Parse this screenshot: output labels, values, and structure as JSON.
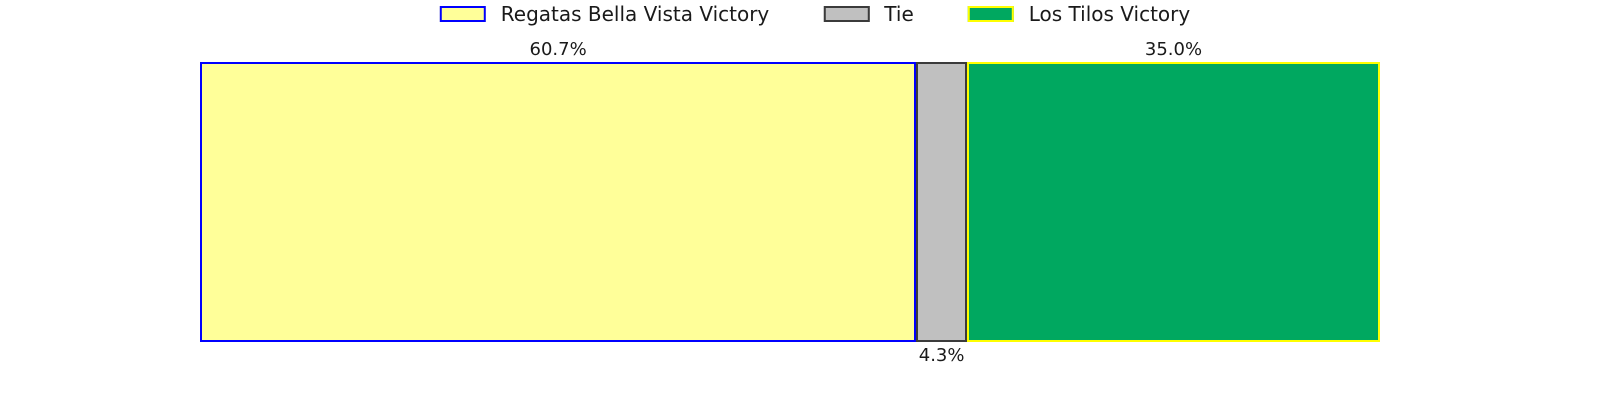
{
  "chart_data": {
    "type": "bar",
    "variant": "horizontal-stacked-single-bar",
    "title": "",
    "xlim": [
      0,
      100
    ],
    "units": "%",
    "legend_position": "top-center",
    "grid": false,
    "series": [
      {
        "name": "Regatas Bella Vista Victory",
        "value": 60.7,
        "label": "60.7%",
        "label_position": "above",
        "fill": "#ffff99",
        "border": "#0000ff"
      },
      {
        "name": "Tie",
        "value": 4.3,
        "label": "4.3%",
        "label_position": "below",
        "fill": "#c0c0c0",
        "border": "#3b3b3b"
      },
      {
        "name": "Los Tilos Victory",
        "value": 35.0,
        "label": "35.0%",
        "label_position": "above",
        "fill": "#00a860",
        "border": "#ffff00"
      }
    ],
    "text_color": "#1a1a1a"
  }
}
